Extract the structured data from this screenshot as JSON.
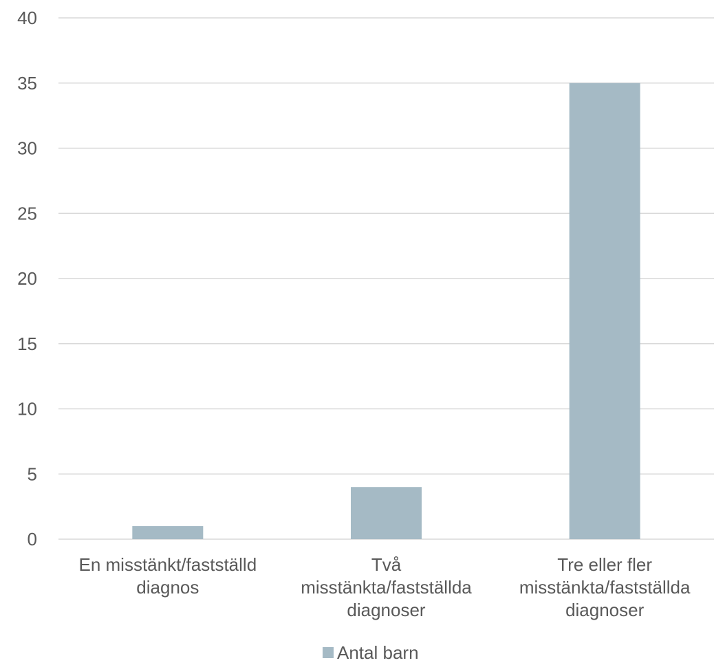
{
  "chart_data": {
    "type": "bar",
    "categories": [
      [
        "En misstänkt/fastställd",
        "diagnos"
      ],
      [
        "Två",
        "misstänkta/fastställda",
        "diagnoser"
      ],
      [
        "Tre eller fler",
        "misstänkta/fastställda",
        "diagnoser"
      ]
    ],
    "series": [
      {
        "name": "Antal barn",
        "values": [
          1,
          4,
          35
        ],
        "color": "#a5bac5"
      }
    ],
    "yticks": [
      "0",
      "5",
      "10",
      "15",
      "20",
      "25",
      "30",
      "35",
      "40"
    ],
    "ylim": [
      0,
      40
    ],
    "grid": true,
    "legend": "bottom"
  }
}
